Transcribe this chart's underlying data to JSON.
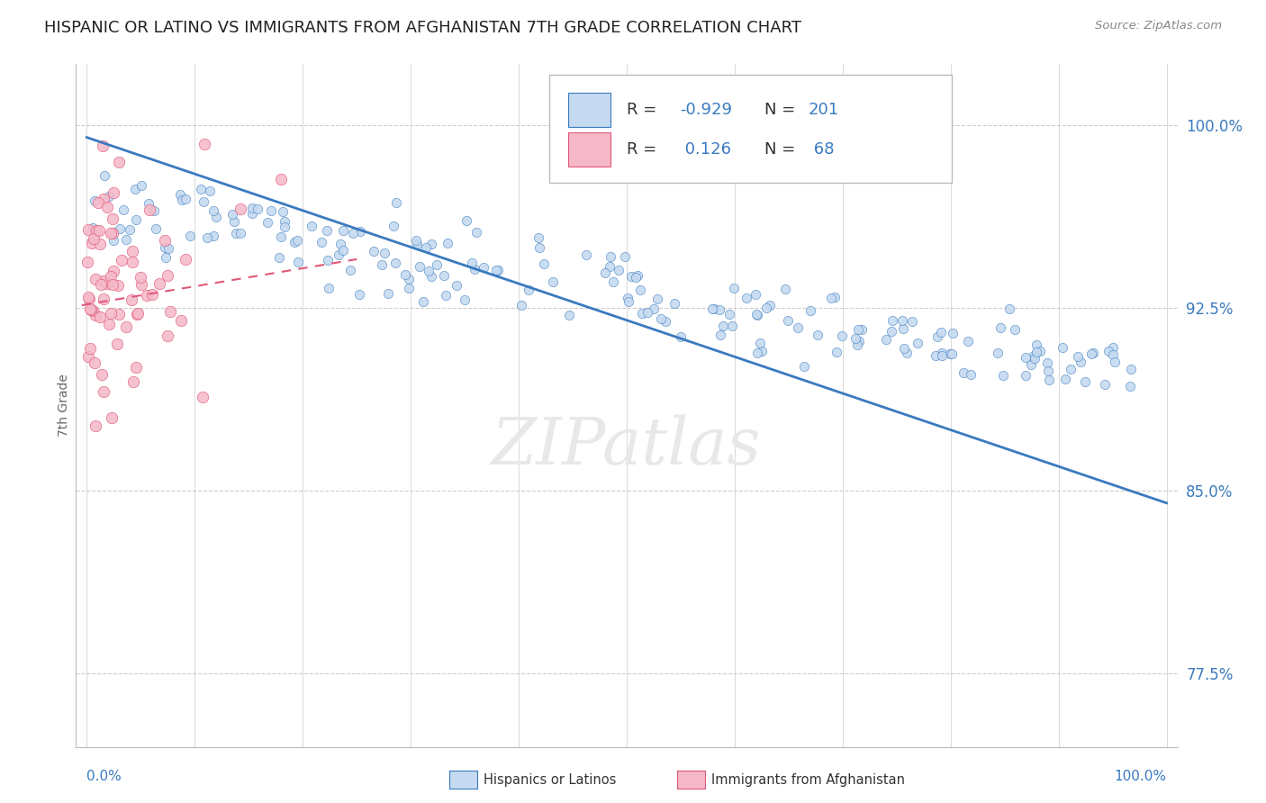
{
  "title": "HISPANIC OR LATINO VS IMMIGRANTS FROM AFGHANISTAN 7TH GRADE CORRELATION CHART",
  "source": "Source: ZipAtlas.com",
  "ylabel": "7th Grade",
  "ytick_labels": [
    "77.5%",
    "85.0%",
    "92.5%",
    "100.0%"
  ],
  "ytick_values": [
    0.775,
    0.85,
    0.925,
    1.0
  ],
  "blue_scatter_color": "#c5daf0",
  "pink_scatter_color": "#f5b8c8",
  "blue_line_color": "#3a7abf",
  "pink_line_color": "#e05878",
  "watermark_text": "ZIPatlas",
  "bg_color": "#ffffff",
  "grid_color": "#cccccc",
  "seed": 42,
  "blue_R": -0.929,
  "blue_N": 201,
  "pink_R": 0.126,
  "pink_N": 68,
  "xmin": 0.0,
  "xmax": 1.0,
  "ymin": 0.745,
  "ymax": 1.025,
  "blue_trend_x0": 0.0,
  "blue_trend_y0": 0.995,
  "blue_trend_x1": 1.0,
  "blue_trend_y1": 0.845,
  "pink_trend_x0": -0.02,
  "pink_trend_y0": 0.925,
  "pink_trend_x1": 0.25,
  "pink_trend_y1": 0.945,
  "legend_R_label": "R =",
  "legend_N_label": "N =",
  "legend_blue_R": "-0.929",
  "legend_blue_N": "201",
  "legend_pink_R": "0.126",
  "legend_pink_N": "68",
  "bottom_legend_blue": "Hispanics or Latinos",
  "bottom_legend_pink": "Immigrants from Afghanistan"
}
